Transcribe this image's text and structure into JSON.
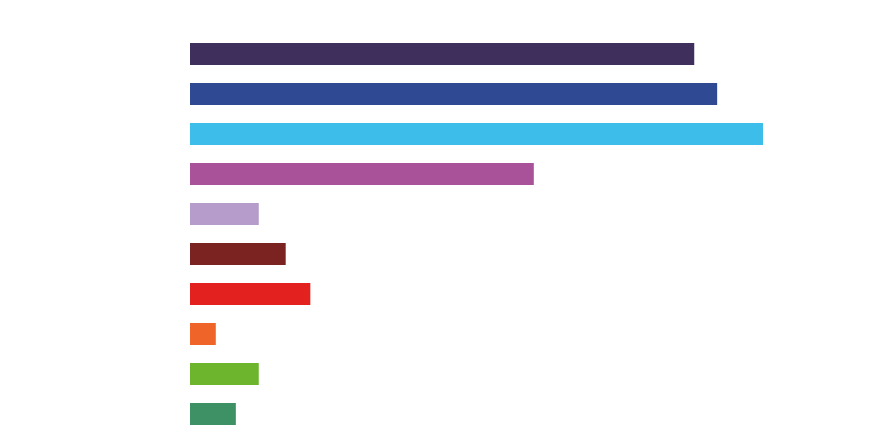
{
  "chart_data": {
    "type": "bar",
    "orientation": "horizontal",
    "title": "",
    "xlabel": "",
    "ylabel": "",
    "grid": false,
    "legend": "none",
    "xlim": [
      0,
      100
    ],
    "categories": [
      "",
      "",
      "",
      "",
      "",
      "",
      "",
      "",
      "",
      ""
    ],
    "values": [
      88,
      92,
      100,
      60,
      12,
      16.7,
      21,
      4.5,
      12,
      8
    ],
    "colors": [
      "#3e2f5c",
      "#2f4a92",
      "#3dbde9",
      "#aa5299",
      "#b59ccb",
      "#7a2321",
      "#e3221f",
      "#ef6428",
      "#6eb52e",
      "#3e9165"
    ]
  }
}
